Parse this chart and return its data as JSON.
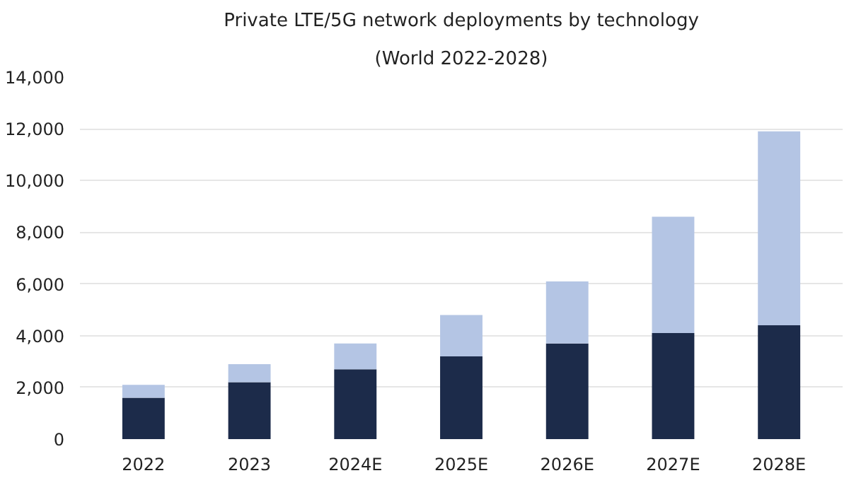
{
  "chart_data": {
    "type": "bar",
    "title": "Private LTE/5G network deployments by technology",
    "subtitle": "(World 2022-2028)",
    "categories": [
      "2022",
      "2023",
      "2024E",
      "2025E",
      "2026E",
      "2027E",
      "2028E"
    ],
    "stacked": true,
    "series": [
      {
        "color": "#1c2b4a",
        "values": [
          1600,
          2200,
          2700,
          3200,
          3700,
          4100,
          4400
        ]
      },
      {
        "color": "#b4c5e4",
        "values": [
          500,
          700,
          1000,
          1600,
          2400,
          4500,
          7500
        ]
      }
    ],
    "ylim": [
      0,
      14000
    ],
    "yticks": [
      {
        "value": 0,
        "label": "0"
      },
      {
        "value": 2000,
        "label": "2,000"
      },
      {
        "value": 4000,
        "label": "4,000"
      },
      {
        "value": 6000,
        "label": "6,000"
      },
      {
        "value": 8000,
        "label": "8,000"
      },
      {
        "value": 10000,
        "label": "10,000"
      },
      {
        "value": 12000,
        "label": "12,000"
      },
      {
        "value": 14000,
        "label": "14,000"
      }
    ],
    "grid": "y"
  }
}
